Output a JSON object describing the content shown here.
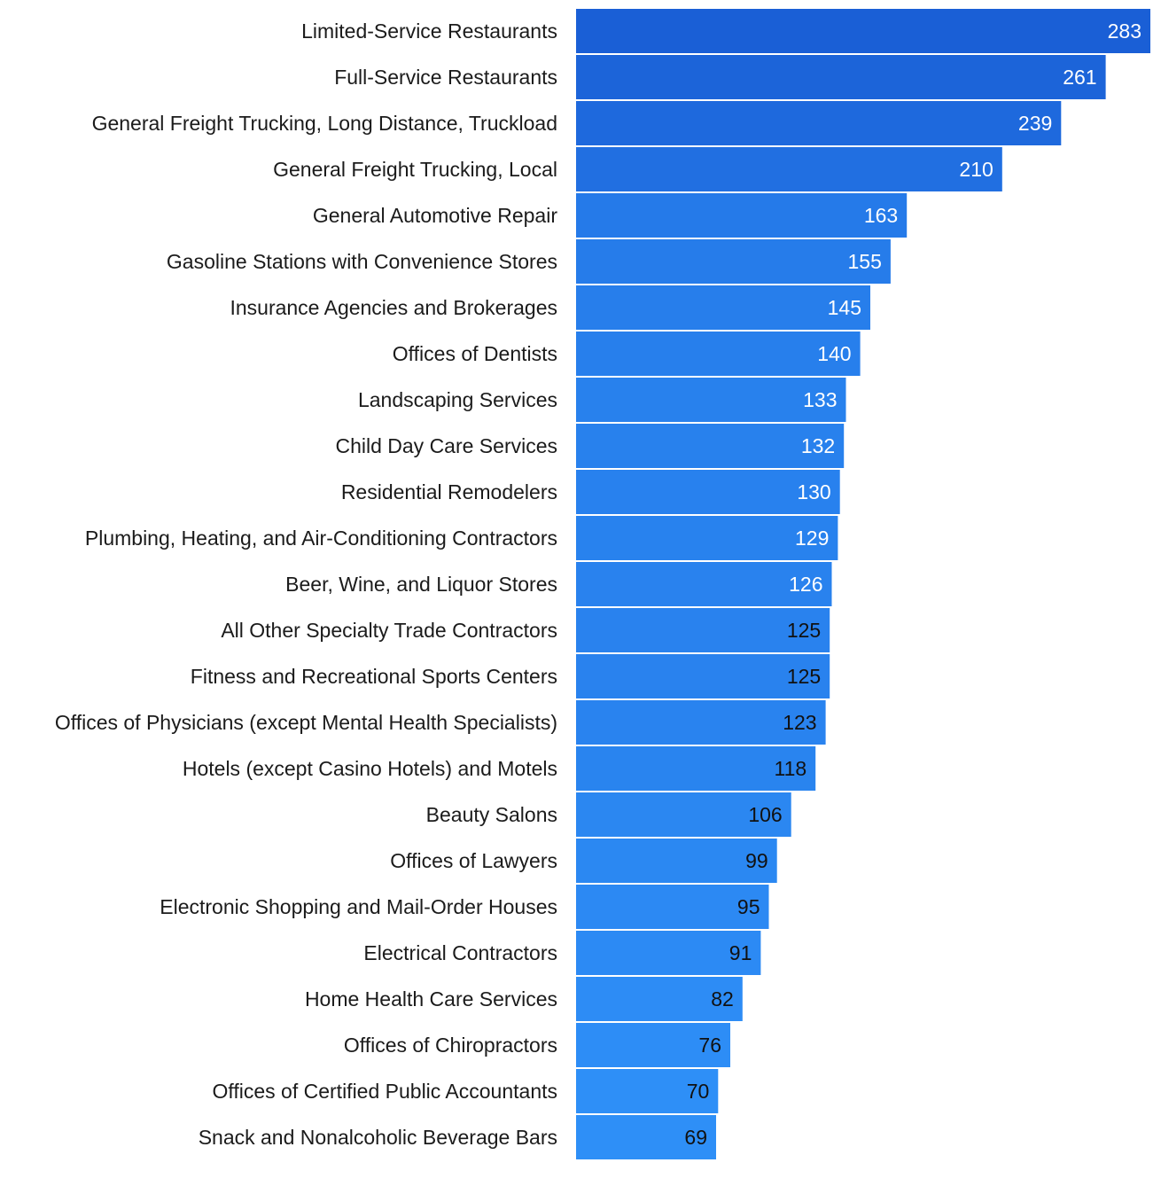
{
  "chart_data": {
    "type": "bar",
    "orientation": "horizontal",
    "categories": [
      "Limited-Service Restaurants",
      "Full-Service Restaurants",
      "General Freight Trucking, Long Distance, Truckload",
      "General Freight Trucking, Local",
      "General Automotive Repair",
      "Gasoline Stations with Convenience Stores",
      "Insurance Agencies and Brokerages",
      "Offices of Dentists",
      "Landscaping Services",
      "Child Day Care Services",
      "Residential Remodelers",
      "Plumbing, Heating, and Air-Conditioning Contractors",
      "Beer, Wine, and Liquor Stores",
      "All Other Specialty Trade Contractors",
      "Fitness and Recreational Sports Centers",
      "Offices of Physicians (except Mental Health Specialists)",
      "Hotels (except Casino Hotels) and Motels",
      "Beauty Salons",
      "Offices of Lawyers",
      "Electronic Shopping and Mail-Order Houses",
      "Electrical Contractors",
      "Home Health Care Services",
      "Offices of Chiropractors",
      "Offices of Certified Public Accountants",
      "Snack and Nonalcoholic Beverage Bars"
    ],
    "values": [
      283,
      261,
      239,
      210,
      163,
      155,
      145,
      140,
      133,
      132,
      130,
      129,
      126,
      125,
      125,
      123,
      118,
      106,
      99,
      95,
      91,
      82,
      76,
      70,
      69
    ],
    "data_labels": [
      "283",
      "261",
      "239",
      "210",
      "163",
      "155",
      "145",
      "140",
      "133",
      "132",
      "130",
      "129",
      "126",
      "125",
      "125",
      "123",
      "118",
      "106",
      "99",
      "95",
      "91",
      "82",
      "76",
      "70",
      "69"
    ],
    "title": "",
    "xlabel": "",
    "ylabel": "",
    "xlim": [
      0,
      283
    ],
    "grid": false,
    "legend": "none",
    "colors": {
      "bar_max": "#1a5fd6",
      "bar_min": "#2e8ff7",
      "label_text_light": "#ffffff",
      "label_text_dark": "#111111",
      "category_text": "#1b1b1b"
    },
    "dark_label_threshold": 125
  }
}
